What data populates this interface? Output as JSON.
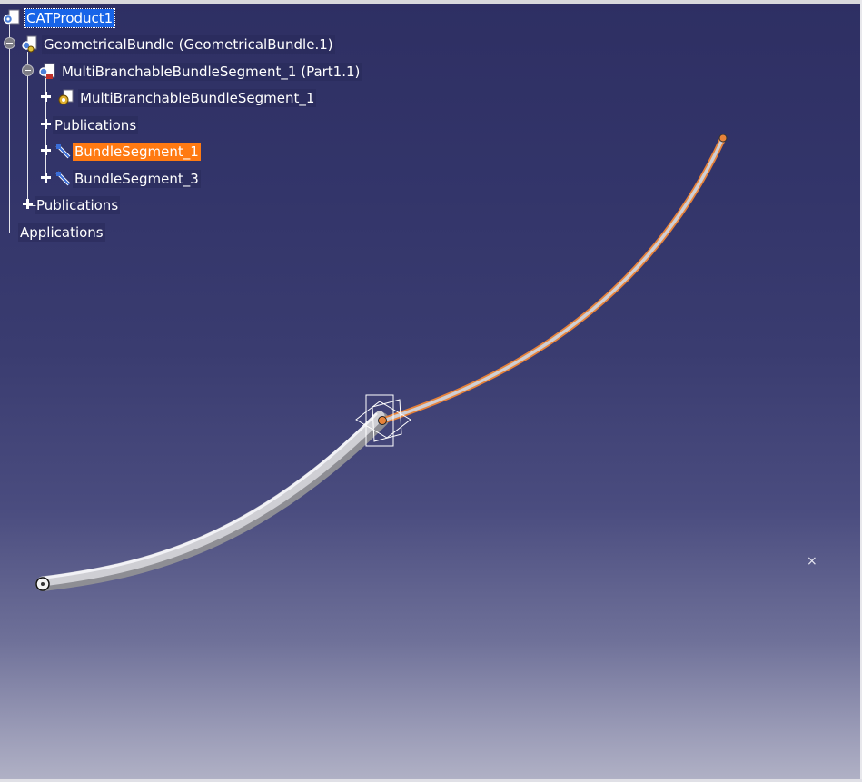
{
  "tree": {
    "root_label": "CATProduct1",
    "bundle_label": "GeometricalBundle (GeometricalBundle.1)",
    "mbbs_part_label": "MultiBranchableBundleSegment_1 (Part1.1)",
    "mbbs_label": "MultiBranchableBundleSegment_1",
    "publications_inner_label": "Publications",
    "segment1_label": "BundleSegment_1",
    "segment3_label": "BundleSegment_3",
    "publications_outer_label": "Publications",
    "applications_label": "Applications"
  },
  "colors": {
    "selection_blue": "#1764e8",
    "selection_orange": "#ff7a12",
    "highlight_curve": "#e8833a",
    "bundle_grey": "#c8c8cc"
  },
  "icons": {
    "root": "product-gear-icon",
    "bundle": "geometrical-bundle-icon",
    "part": "part-document-icon",
    "mbbs": "gear-body-icon",
    "segment": "bundle-segment-icon",
    "compass_mark": "x-mark-icon"
  }
}
